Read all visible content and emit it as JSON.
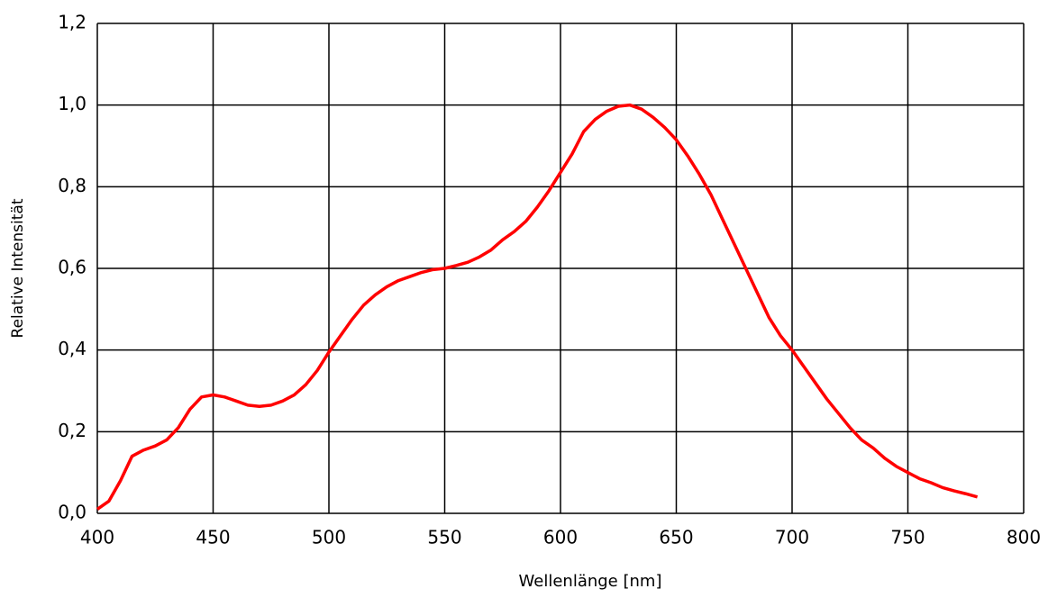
{
  "chart_data": {
    "type": "line",
    "x_label": "Wellenlänge [nm]",
    "y_label": "Relative Intensität",
    "x": [
      400,
      405,
      410,
      415,
      420,
      425,
      430,
      435,
      440,
      445,
      450,
      455,
      460,
      465,
      470,
      475,
      480,
      485,
      490,
      495,
      500,
      505,
      510,
      515,
      520,
      525,
      530,
      535,
      540,
      545,
      550,
      555,
      560,
      565,
      570,
      575,
      580,
      585,
      590,
      595,
      600,
      605,
      610,
      615,
      620,
      625,
      630,
      635,
      640,
      645,
      650,
      655,
      660,
      665,
      670,
      675,
      680,
      685,
      690,
      695,
      700,
      705,
      710,
      715,
      720,
      725,
      730,
      735,
      740,
      745,
      750,
      755,
      760,
      765,
      770,
      775,
      780
    ],
    "series": [
      {
        "name": "Relative Intensität",
        "color": "#ff0000",
        "values": [
          0.01,
          0.03,
          0.08,
          0.14,
          0.155,
          0.165,
          0.18,
          0.21,
          0.255,
          0.285,
          0.29,
          0.285,
          0.275,
          0.265,
          0.262,
          0.265,
          0.275,
          0.29,
          0.315,
          0.35,
          0.395,
          0.435,
          0.475,
          0.51,
          0.535,
          0.555,
          0.57,
          0.58,
          0.59,
          0.597,
          0.6,
          0.607,
          0.615,
          0.628,
          0.645,
          0.67,
          0.69,
          0.715,
          0.75,
          0.79,
          0.835,
          0.88,
          0.935,
          0.965,
          0.985,
          0.997,
          1.0,
          0.99,
          0.97,
          0.945,
          0.915,
          0.875,
          0.83,
          0.78,
          0.72,
          0.66,
          0.6,
          0.54,
          0.48,
          0.435,
          0.4,
          0.36,
          0.32,
          0.28,
          0.245,
          0.21,
          0.18,
          0.16,
          0.135,
          0.115,
          0.1,
          0.085,
          0.075,
          0.063,
          0.055,
          0.048,
          0.04
        ]
      }
    ],
    "xlim": [
      400,
      800
    ],
    "xticks": [
      400,
      450,
      500,
      550,
      600,
      650,
      700,
      750,
      800
    ],
    "ylim": [
      0,
      1.2
    ],
    "yticks": [
      {
        "value": 0,
        "label": "0,0"
      },
      {
        "value": 0.2,
        "label": "0,2"
      },
      {
        "value": 0.4,
        "label": "0,4"
      },
      {
        "value": 0.6,
        "label": "0,6"
      },
      {
        "value": 0.8,
        "label": "0,8"
      },
      {
        "value": 1.0,
        "label": "1,0"
      },
      {
        "value": 1.2,
        "label": "1,2"
      }
    ],
    "grid": true
  }
}
